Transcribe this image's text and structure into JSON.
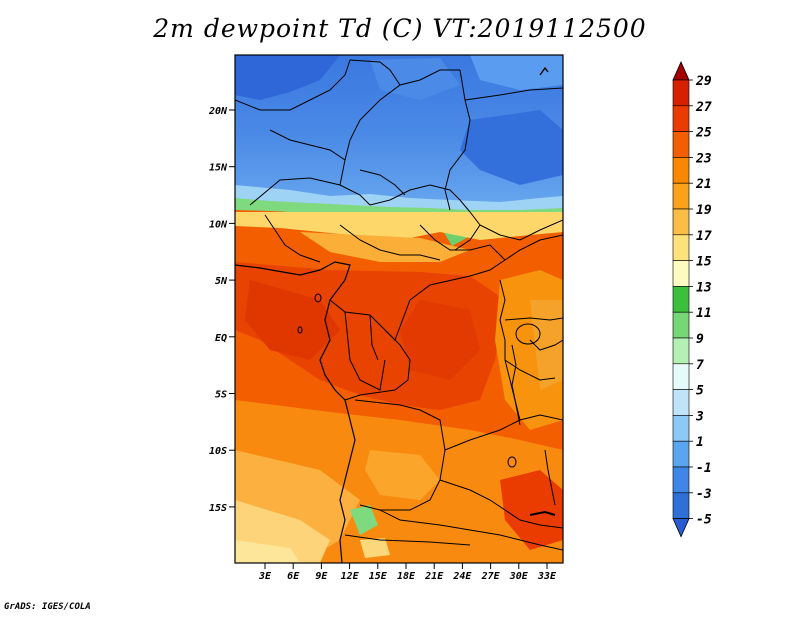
{
  "title": "2m dewpoint Td (C) VT:2019112500",
  "footer": "GrADS: IGES/COLA",
  "map": {
    "variable": "2m dewpoint",
    "units": "C",
    "valid_time": "2019112500",
    "lon_range": [
      0,
      35
    ],
    "lat_range": [
      -20,
      25
    ],
    "lat_ticks": [
      "20N",
      "15N",
      "10N",
      "5N",
      "EQ",
      "5S",
      "10S",
      "15S"
    ],
    "lon_ticks": [
      "3E",
      "6E",
      "9E",
      "12E",
      "15E",
      "18E",
      "21E",
      "24E",
      "27E",
      "30E",
      "33E"
    ]
  },
  "colorbar": {
    "labels": [
      "29",
      "27",
      "25",
      "23",
      "21",
      "19",
      "17",
      "15",
      "13",
      "11",
      "9",
      "7",
      "5",
      "3",
      "1",
      "-1",
      "-3",
      "-5"
    ],
    "colors": [
      "#a50000",
      "#d72000",
      "#ea3c00",
      "#f35f00",
      "#f98700",
      "#fba218",
      "#fcbd46",
      "#fde17b",
      "#fffac0",
      "#3cbf3c",
      "#76d776",
      "#b3f0b3",
      "#e6fafa",
      "#bfe4fa",
      "#8ec8f5",
      "#5aa5f0",
      "#3f86e8",
      "#2f6fd8",
      "#2a5bd0"
    ]
  }
}
